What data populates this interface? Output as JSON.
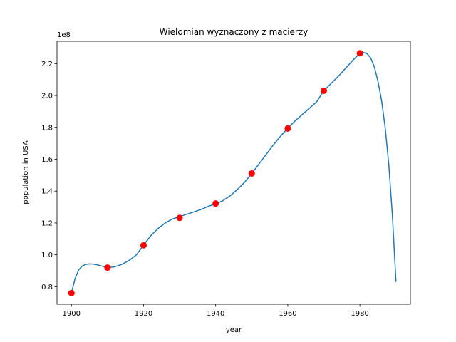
{
  "chart_data": {
    "type": "line",
    "title": "Wielomian wyznaczony z macierzy",
    "xlabel": "year",
    "ylabel": "population in USA",
    "y_offset_label": "1e8",
    "xlim": [
      1896,
      1994
    ],
    "ylim": [
      0.69,
      2.34
    ],
    "x_ticks": [
      1900,
      1920,
      1940,
      1960,
      1980
    ],
    "y_ticks": [
      0.8,
      1.0,
      1.2,
      1.4,
      1.6,
      1.8,
      2.0,
      2.2
    ],
    "grid": false,
    "series": [
      {
        "kind": "line",
        "color": "#1f77b4",
        "x": [
          1900,
          1901,
          1902,
          1903,
          1904,
          1905,
          1906,
          1907,
          1908,
          1910,
          1912,
          1914,
          1916,
          1918,
          1920,
          1922,
          1924,
          1926,
          1928,
          1930,
          1932,
          1934,
          1936,
          1938,
          1940,
          1942,
          1944,
          1946,
          1948,
          1950,
          1952,
          1954,
          1956,
          1958,
          1960,
          1962,
          1964,
          1966,
          1968,
          1970,
          1972,
          1974,
          1976,
          1978,
          1980,
          1981,
          1982,
          1983,
          1984,
          1985,
          1986,
          1987,
          1988,
          1989,
          1990
        ],
        "y": [
          0.76,
          0.85,
          0.905,
          0.93,
          0.94,
          0.943,
          0.942,
          0.938,
          0.932,
          0.92,
          0.925,
          0.94,
          0.965,
          1.0,
          1.06,
          1.12,
          1.165,
          1.2,
          1.225,
          1.24,
          1.255,
          1.27,
          1.285,
          1.305,
          1.32,
          1.34,
          1.37,
          1.41,
          1.455,
          1.51,
          1.57,
          1.63,
          1.69,
          1.745,
          1.795,
          1.84,
          1.88,
          1.92,
          1.96,
          2.03,
          2.075,
          2.12,
          2.17,
          2.22,
          2.265,
          2.27,
          2.262,
          2.235,
          2.18,
          2.09,
          1.97,
          1.8,
          1.57,
          1.25,
          0.83
        ]
      },
      {
        "kind": "points",
        "color": "#ff0000",
        "x": [
          1900,
          1910,
          1920,
          1930,
          1940,
          1950,
          1960,
          1970,
          1980
        ],
        "y": [
          0.76,
          0.92,
          1.06,
          1.232,
          1.322,
          1.511,
          1.793,
          2.03,
          2.265
        ]
      }
    ]
  }
}
